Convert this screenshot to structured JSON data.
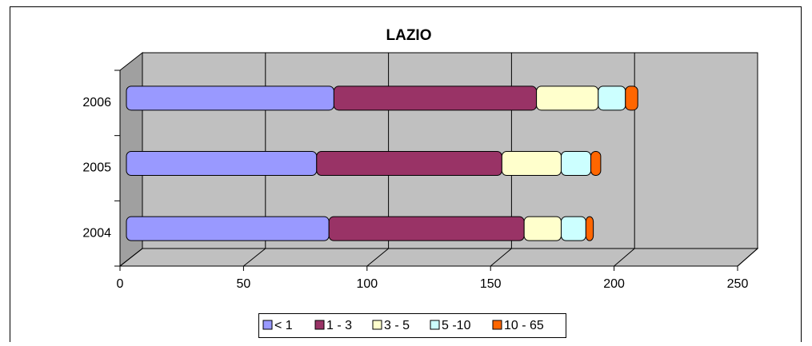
{
  "chart_data": {
    "type": "bar",
    "orientation": "horizontal",
    "stacked": true,
    "title": "LAZIO",
    "categories": [
      "2004",
      "2005",
      "2006"
    ],
    "series": [
      {
        "name": "< 1",
        "color": "#9999ff",
        "values": [
          82,
          77,
          84
        ]
      },
      {
        "name": "1 - 3",
        "color": "#993366",
        "values": [
          79,
          75,
          82
        ]
      },
      {
        "name": "3 - 5",
        "color": "#ffffcc",
        "values": [
          15,
          24,
          25
        ]
      },
      {
        "name": "5 -10",
        "color": "#ccffff",
        "values": [
          10,
          12,
          11
        ]
      },
      {
        "name": "10 - 65",
        "color": "#ff6600",
        "values": [
          3,
          4,
          5
        ]
      }
    ],
    "xlim": [
      0,
      250
    ],
    "xticks": [
      0,
      50,
      100,
      150,
      200,
      250
    ],
    "grid": true,
    "legend": "bottom"
  }
}
